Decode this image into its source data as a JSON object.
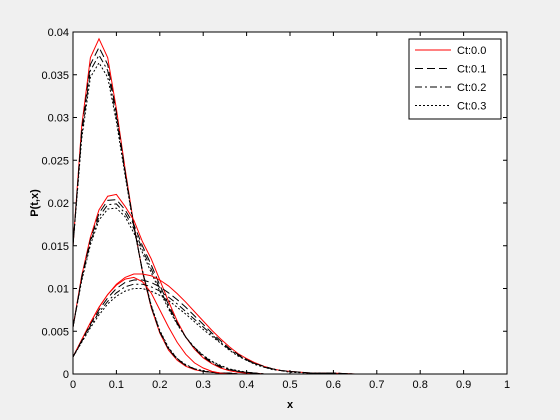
{
  "chart_data": {
    "type": "line",
    "xlabel": "x",
    "ylabel": "P(t,x)",
    "xlim": [
      0,
      1
    ],
    "ylim": [
      0,
      0.04
    ],
    "x_ticks": [
      "0",
      "0.1",
      "0.2",
      "0.3",
      "0.4",
      "0.5",
      "0.6",
      "0.7",
      "0.8",
      "0.9",
      "1"
    ],
    "y_ticks": [
      "0",
      "0.005",
      "0.01",
      "0.015",
      "0.02",
      "0.025",
      "0.03",
      "0.035",
      "0.04"
    ],
    "grid": false,
    "legend_position": "top-right",
    "x": [
      0,
      0.02,
      0.04,
      0.06,
      0.08,
      0.1,
      0.12,
      0.14,
      0.16,
      0.18,
      0.2,
      0.22,
      0.24,
      0.26,
      0.28,
      0.3,
      0.32,
      0.34,
      0.36,
      0.38,
      0.4,
      0.42,
      0.44,
      0.46,
      0.48,
      0.5,
      0.55,
      0.6,
      0.65,
      0.7,
      0.75,
      0.8,
      0.85,
      0.9,
      0.95,
      1.0
    ],
    "series": [
      {
        "name": "Ct:0.0",
        "color": "#ff0000",
        "dash": "solid",
        "group": "t1",
        "values": [
          0.015,
          0.029,
          0.037,
          0.0392,
          0.037,
          0.031,
          0.024,
          0.0175,
          0.012,
          0.0078,
          0.0048,
          0.0028,
          0.0016,
          0.0009,
          0.0005,
          0.0003,
          0.0002,
          0.0001,
          0.0001,
          0,
          0,
          0,
          0,
          0,
          0,
          0,
          0,
          0,
          0,
          0,
          0,
          0,
          0,
          0,
          0,
          0
        ]
      },
      {
        "name": "Ct:0.1",
        "color": "#000000",
        "dash": "longdash",
        "group": "t1",
        "values": [
          0.015,
          0.0285,
          0.0362,
          0.0382,
          0.0362,
          0.0305,
          0.0237,
          0.0174,
          0.012,
          0.0079,
          0.0049,
          0.0029,
          0.0017,
          0.001,
          0.0006,
          0.0003,
          0.0002,
          0.0001,
          0.0001,
          0,
          0,
          0,
          0,
          0,
          0,
          0,
          0,
          0,
          0,
          0,
          0,
          0,
          0,
          0,
          0,
          0
        ]
      },
      {
        "name": "Ct:0.2",
        "color": "#000000",
        "dash": "dashdot",
        "group": "t1",
        "values": [
          0.015,
          0.028,
          0.0355,
          0.0373,
          0.0355,
          0.03,
          0.0235,
          0.0173,
          0.0121,
          0.008,
          0.005,
          0.003,
          0.0018,
          0.001,
          0.0006,
          0.0003,
          0.0002,
          0.0001,
          0.0001,
          0,
          0,
          0,
          0,
          0,
          0,
          0,
          0,
          0,
          0,
          0,
          0,
          0,
          0,
          0,
          0,
          0
        ]
      },
      {
        "name": "Ct:0.3",
        "color": "#000000",
        "dash": "dotted",
        "group": "t1",
        "values": [
          0.015,
          0.0275,
          0.0347,
          0.0364,
          0.0347,
          0.0295,
          0.0232,
          0.0172,
          0.0121,
          0.0081,
          0.0051,
          0.0031,
          0.0018,
          0.0011,
          0.0006,
          0.0004,
          0.0002,
          0.0001,
          0.0001,
          0,
          0,
          0,
          0,
          0,
          0,
          0,
          0,
          0,
          0,
          0,
          0,
          0,
          0,
          0,
          0,
          0
        ]
      },
      {
        "name": "",
        "color": "#ff0000",
        "dash": "solid",
        "group": "t2",
        "values": [
          0.0055,
          0.0115,
          0.016,
          0.0192,
          0.0208,
          0.021,
          0.0196,
          0.018,
          0.0155,
          0.0135,
          0.011,
          0.0085,
          0.0062,
          0.0043,
          0.0029,
          0.0019,
          0.0012,
          0.0007,
          0.0004,
          0.0002,
          0.0001,
          0.0001,
          0,
          0,
          0,
          0,
          0,
          0,
          0,
          0,
          0,
          0,
          0,
          0,
          0,
          0
        ]
      },
      {
        "name": "",
        "color": "#000000",
        "dash": "longdash",
        "group": "t2",
        "values": [
          0.0055,
          0.0113,
          0.0157,
          0.0188,
          0.0203,
          0.0204,
          0.0192,
          0.0175,
          0.015,
          0.0128,
          0.0104,
          0.0081,
          0.006,
          0.0043,
          0.003,
          0.002,
          0.0013,
          0.0008,
          0.0005,
          0.0003,
          0.0002,
          0.0001,
          0,
          0,
          0,
          0,
          0,
          0,
          0,
          0,
          0,
          0,
          0,
          0,
          0,
          0
        ]
      },
      {
        "name": "",
        "color": "#000000",
        "dash": "dashdot",
        "group": "t2",
        "values": [
          0.0055,
          0.0111,
          0.0154,
          0.0184,
          0.0198,
          0.0199,
          0.0188,
          0.017,
          0.0146,
          0.0123,
          0.01,
          0.0078,
          0.0059,
          0.0043,
          0.0031,
          0.0021,
          0.0014,
          0.0009,
          0.0006,
          0.0003,
          0.0002,
          0.0001,
          0,
          0,
          0,
          0,
          0,
          0,
          0,
          0,
          0,
          0,
          0,
          0,
          0,
          0
        ]
      },
      {
        "name": "",
        "color": "#000000",
        "dash": "dotted",
        "group": "t2",
        "values": [
          0.0055,
          0.0109,
          0.0151,
          0.018,
          0.0193,
          0.0194,
          0.0184,
          0.0165,
          0.0142,
          0.0119,
          0.0097,
          0.0076,
          0.0058,
          0.0043,
          0.0031,
          0.0022,
          0.0015,
          0.001,
          0.0006,
          0.0004,
          0.0002,
          0.0001,
          0,
          0,
          0,
          0,
          0,
          0,
          0,
          0,
          0,
          0,
          0,
          0,
          0,
          0
        ]
      },
      {
        "name": "",
        "color": "#ff0000",
        "dash": "solid",
        "group": "t3a",
        "values": [
          0.002,
          0.004,
          0.006,
          0.0078,
          0.0093,
          0.0105,
          0.0113,
          0.0117,
          0.0117,
          0.0115,
          0.011,
          0.0103,
          0.0094,
          0.0084,
          0.0073,
          0.0062,
          0.0051,
          0.0041,
          0.0032,
          0.0024,
          0.0018,
          0.0013,
          0.0009,
          0.0006,
          0.0004,
          0.0003,
          0.0001,
          0.0001,
          0,
          0,
          0,
          0,
          0,
          0,
          0,
          0
        ]
      },
      {
        "name": "",
        "color": "#ff0000",
        "dash": "solid",
        "group": "t3b",
        "values": [
          0.002,
          0.004,
          0.006,
          0.0078,
          0.0093,
          0.0104,
          0.0111,
          0.0113,
          0.0108,
          0.0095,
          0.0075,
          0.0055,
          0.0037,
          0.0023,
          0.0013,
          0.0007,
          0.0003,
          0.0001,
          0,
          0,
          0,
          0,
          0,
          0,
          0,
          0,
          0,
          0,
          0,
          0,
          0,
          0,
          0,
          0,
          0,
          0
        ]
      },
      {
        "name": "",
        "color": "#000000",
        "dash": "longdash",
        "group": "t3",
        "values": [
          0.002,
          0.0039,
          0.0058,
          0.0075,
          0.0089,
          0.01,
          0.0107,
          0.011,
          0.011,
          0.0107,
          0.0102,
          0.0095,
          0.0087,
          0.0078,
          0.0068,
          0.0058,
          0.0048,
          0.0039,
          0.003,
          0.0023,
          0.0017,
          0.0012,
          0.0009,
          0.0006,
          0.0004,
          0.0003,
          0.0001,
          0.0001,
          0,
          0,
          0,
          0,
          0,
          0,
          0,
          0
        ]
      },
      {
        "name": "",
        "color": "#000000",
        "dash": "dashdot",
        "group": "t3",
        "values": [
          0.002,
          0.0038,
          0.0056,
          0.0072,
          0.0085,
          0.0095,
          0.0102,
          0.0105,
          0.0105,
          0.0102,
          0.0097,
          0.009,
          0.0082,
          0.0073,
          0.0064,
          0.0055,
          0.0046,
          0.0037,
          0.0029,
          0.0022,
          0.0016,
          0.0012,
          0.0008,
          0.0006,
          0.0004,
          0.0003,
          0.0001,
          0.0001,
          0,
          0,
          0,
          0,
          0,
          0,
          0,
          0
        ]
      },
      {
        "name": "",
        "color": "#000000",
        "dash": "dotted",
        "group": "t3",
        "values": [
          0.002,
          0.0037,
          0.0054,
          0.0069,
          0.0082,
          0.0091,
          0.0097,
          0.01,
          0.01,
          0.0097,
          0.0092,
          0.0086,
          0.0078,
          0.007,
          0.0061,
          0.0052,
          0.0044,
          0.0036,
          0.0028,
          0.0021,
          0.0016,
          0.0011,
          0.0008,
          0.0005,
          0.0004,
          0.0002,
          0.0001,
          0.0001,
          0,
          0,
          0,
          0,
          0,
          0,
          0,
          0
        ]
      }
    ],
    "legend": [
      {
        "label": "Ct:0.0",
        "color": "#ff0000",
        "dash": "solid"
      },
      {
        "label": "Ct:0.1",
        "color": "#000000",
        "dash": "longdash"
      },
      {
        "label": "Ct:0.2",
        "color": "#000000",
        "dash": "dashdot"
      },
      {
        "label": "Ct:0.3",
        "color": "#000000",
        "dash": "dotted"
      }
    ]
  }
}
